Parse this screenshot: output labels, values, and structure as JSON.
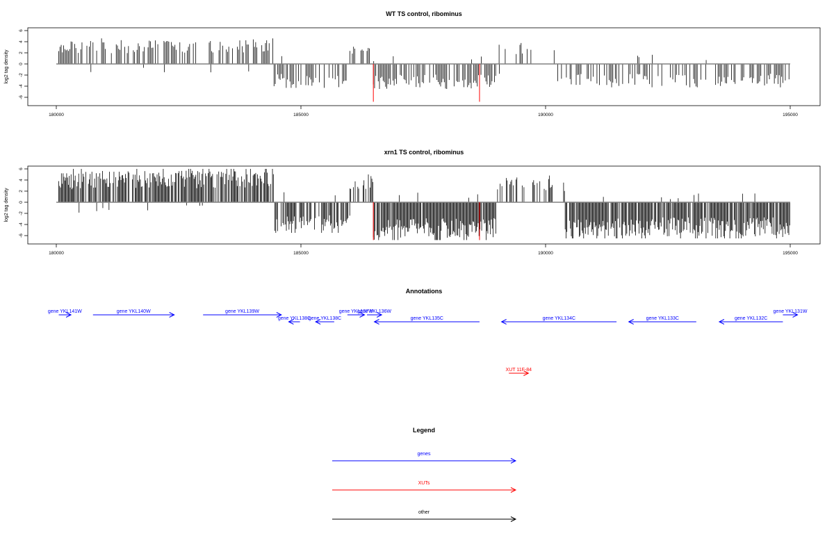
{
  "chart_data": [
    {
      "type": "bar",
      "title": "WT TS control, ribominus",
      "xlabel": "",
      "ylabel": "log2 tag density",
      "xlim": [
        180000,
        195000
      ],
      "ylim": [
        -7,
        7
      ],
      "xticks": [
        180000,
        185000,
        190000,
        195000
      ],
      "yticks": [
        6,
        4,
        2,
        0,
        -2,
        -4,
        -6
      ],
      "baseline_color": "#808080",
      "bar_color": "#000000",
      "marker_color": "#ff0000",
      "markers": [
        {
          "x": 186480,
          "y": -6.8
        },
        {
          "x": 188650,
          "y": -6.8
        }
      ],
      "profile": {
        "step": 25,
        "segments": [
          {
            "x_start": 180050,
            "x_end": 180300,
            "sign": "+",
            "max": 4.0,
            "density": 1.0
          },
          {
            "x_start": 180300,
            "x_end": 184450,
            "sign": "+",
            "max": 4.6,
            "density": 0.55
          },
          {
            "x_start": 184450,
            "x_end": 186000,
            "sign": "-",
            "max": 4.3,
            "density": 0.6
          },
          {
            "x_start": 186000,
            "x_end": 186480,
            "sign": "+",
            "max": 3.1,
            "density": 0.45
          },
          {
            "x_start": 186480,
            "x_end": 189000,
            "sign": "-",
            "max": 4.5,
            "density": 0.7
          },
          {
            "x_start": 189000,
            "x_end": 190200,
            "sign": "+",
            "max": 3.8,
            "density": 0.15
          },
          {
            "x_start": 190200,
            "x_end": 195000,
            "sign": "-",
            "max": 4.2,
            "density": 0.45
          }
        ]
      }
    },
    {
      "type": "bar",
      "title": "xrn1 TS control, ribominus",
      "xlabel": "",
      "ylabel": "log2 tag density",
      "xlim": [
        180000,
        195000
      ],
      "ylim": [
        -7,
        7
      ],
      "xticks": [
        180000,
        185000,
        190000,
        195000
      ],
      "yticks": [
        6,
        4,
        2,
        0,
        -2,
        -4,
        -6
      ],
      "baseline_color": "#808080",
      "bar_color": "#000000",
      "marker_color": "#ff0000",
      "markers": [
        {
          "x": 186480,
          "y": -6.8
        },
        {
          "x": 188650,
          "y": -6.8
        }
      ],
      "profile": {
        "step": 18,
        "segments": [
          {
            "x_start": 180050,
            "x_end": 180350,
            "sign": "+",
            "max": 5.2,
            "density": 1.0
          },
          {
            "x_start": 180350,
            "x_end": 184450,
            "sign": "+",
            "max": 6.0,
            "density": 0.8
          },
          {
            "x_start": 184450,
            "x_end": 186000,
            "sign": "-",
            "max": 5.5,
            "density": 0.75
          },
          {
            "x_start": 186000,
            "x_end": 186480,
            "sign": "+",
            "max": 5.0,
            "density": 0.7
          },
          {
            "x_start": 186480,
            "x_end": 189000,
            "sign": "-",
            "max": 6.8,
            "density": 0.95
          },
          {
            "x_start": 189000,
            "x_end": 190400,
            "sign": "+",
            "max": 4.8,
            "density": 0.35
          },
          {
            "x_start": 190400,
            "x_end": 195000,
            "sign": "-",
            "max": 6.5,
            "density": 0.85
          }
        ]
      }
    },
    {
      "type": "annotation_track",
      "title": "Annotations",
      "features": [
        {
          "label": "gene YKL141W",
          "x_start": 180050,
          "x_end": 180300,
          "strand": "+",
          "row": 0,
          "color": "#0000ff"
        },
        {
          "label": "gene YKL140W",
          "x_start": 180750,
          "x_end": 182410,
          "strand": "+",
          "row": 0,
          "color": "#0000ff"
        },
        {
          "label": "gene YKL139W",
          "x_start": 183000,
          "x_end": 184600,
          "strand": "+",
          "row": 0,
          "color": "#0000ff"
        },
        {
          "label": "gene YKL138C",
          "x_start": 184750,
          "x_end": 184980,
          "strand": "-",
          "row": 1,
          "color": "#0000ff"
        },
        {
          "label": "gene YKL138C",
          "x_start": 185300,
          "x_end": 185680,
          "strand": "-",
          "row": 1,
          "color": "#0000ff"
        },
        {
          "label": "gene YKL137W",
          "x_start": 185950,
          "x_end": 186300,
          "strand": "+",
          "row": 0,
          "color": "#0000ff"
        },
        {
          "label": "gene YKL136W",
          "x_start": 186350,
          "x_end": 186650,
          "strand": "+",
          "row": 0,
          "color": "#0000ff"
        },
        {
          "label": "gene YKL135C",
          "x_start": 186500,
          "x_end": 188650,
          "strand": "-",
          "row": 1,
          "color": "#0000ff"
        },
        {
          "label": "gene YKL134C",
          "x_start": 189100,
          "x_end": 191450,
          "strand": "-",
          "row": 1,
          "color": "#0000ff"
        },
        {
          "label": "gene YKL133C",
          "x_start": 191700,
          "x_end": 193080,
          "strand": "-",
          "row": 1,
          "color": "#0000ff"
        },
        {
          "label": "gene YKL132C",
          "x_start": 193550,
          "x_end": 194850,
          "strand": "-",
          "row": 1,
          "color": "#0000ff"
        },
        {
          "label": "gene YKL131W",
          "x_start": 194850,
          "x_end": 195150,
          "strand": "+",
          "row": 0,
          "color": "#0000ff"
        },
        {
          "label": "XUT 11F-84",
          "x_start": 189250,
          "x_end": 189650,
          "strand": "+",
          "row": 2,
          "color": "#ff0000"
        }
      ]
    },
    {
      "type": "legend",
      "title": "Legend",
      "entries": [
        {
          "label": "genes",
          "color": "#0000ff"
        },
        {
          "label": "XUTs",
          "color": "#ff0000"
        },
        {
          "label": "other",
          "color": "#000000"
        }
      ]
    }
  ]
}
